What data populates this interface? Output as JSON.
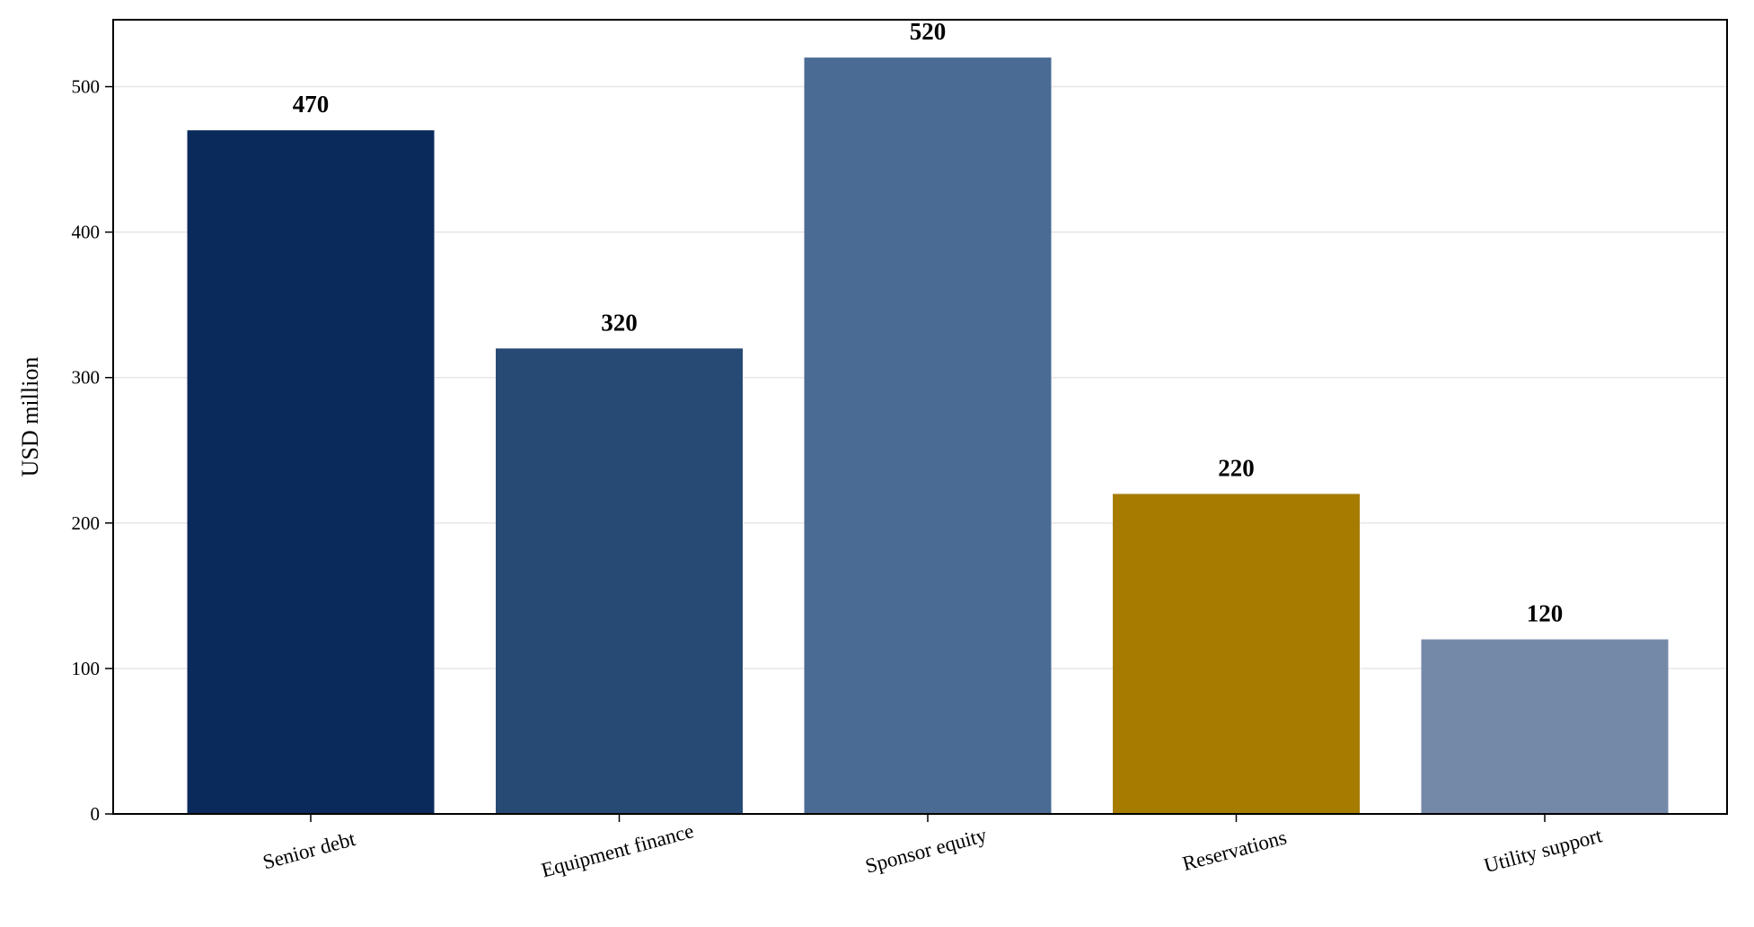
{
  "chart_data": {
    "type": "bar",
    "title": "",
    "xlabel": "",
    "ylabel": "USD million",
    "categories": [
      "Senior debt",
      "Equipment finance",
      "Sponsor equity",
      "Reservations",
      "Utility support"
    ],
    "values": [
      470,
      320,
      520,
      220,
      120
    ],
    "data_labels": [
      "470",
      "320",
      "520",
      "220",
      "120"
    ],
    "colors": [
      "#0b2a5c",
      "#274a75",
      "#4a6b93",
      "#a67c00",
      "#7489a8"
    ],
    "ylim": [
      0,
      546
    ],
    "yticks": [
      0,
      100,
      200,
      300,
      400,
      500
    ],
    "grid": "horizontal",
    "gridColor": "#e6e6e6",
    "legend": "none",
    "category_label_rotation_deg": -15
  }
}
